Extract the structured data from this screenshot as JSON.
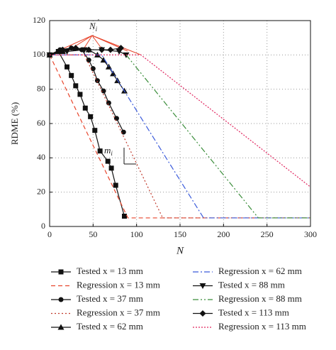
{
  "chart_data": {
    "type": "line",
    "xlabel": "N",
    "ylabel": "RDME (%)",
    "xlim": [
      0,
      300
    ],
    "ylim": [
      0,
      120
    ],
    "xticks": [
      0,
      50,
      100,
      150,
      200,
      250,
      300
    ],
    "yticks": [
      0,
      20,
      40,
      60,
      80,
      100,
      120
    ],
    "grid": true,
    "annotations": [
      {
        "base": "N",
        "sub": "i",
        "sup": "′"
      },
      {
        "base": "m",
        "sub": "i"
      }
    ],
    "series": [
      {
        "name": "Tested x = 13 mm",
        "color": "#111111",
        "marker": "square",
        "dash": null,
        "x": [
          0,
          10,
          20,
          25,
          30,
          35,
          41,
          47,
          52,
          58,
          67,
          71,
          76,
          86
        ],
        "values": [
          100,
          102,
          93,
          88,
          82,
          77,
          69,
          64,
          56,
          44,
          38,
          34,
          24,
          6
        ]
      },
      {
        "name": "Regression x = 13 mm",
        "color": "#e8452c",
        "marker": null,
        "dash": "6,4",
        "x": [
          0,
          90,
          300
        ],
        "values": [
          100,
          5,
          5
        ]
      },
      {
        "name": "Tested x = 37 mm",
        "color": "#111111",
        "marker": "circle",
        "dash": null,
        "x": [
          0,
          12,
          25,
          37,
          45,
          50,
          55,
          62,
          68,
          77,
          85
        ],
        "values": [
          100,
          103,
          104,
          103,
          97,
          92,
          85,
          79,
          72,
          63,
          55
        ]
      },
      {
        "name": "Regression x = 37 mm",
        "color": "#c0392b",
        "marker": null,
        "dash": "2,3",
        "x": [
          0,
          40,
          130,
          300
        ],
        "values": [
          100,
          100,
          5,
          5
        ]
      },
      {
        "name": "Tested x = 62 mm",
        "color": "#111111",
        "marker": "triangle",
        "dash": null,
        "x": [
          0,
          15,
          30,
          45,
          55,
          62,
          68,
          73,
          78,
          86
        ],
        "values": [
          100,
          102,
          104,
          103,
          100,
          97,
          93,
          89,
          85,
          79
        ]
      },
      {
        "name": "Regression x = 62 mm",
        "color": "#3b5bdb",
        "marker": null,
        "dash": "8,3,2,3",
        "x": [
          0,
          60,
          177,
          300
        ],
        "values": [
          100,
          100,
          5,
          5
        ]
      },
      {
        "name": "Tested x = 88 mm",
        "color": "#111111",
        "marker": "triangle-down",
        "dash": null,
        "x": [
          0,
          20,
          40,
          60,
          80,
          88
        ],
        "values": [
          100,
          102,
          103,
          103,
          102,
          100
        ]
      },
      {
        "name": "Regression x = 88 mm",
        "color": "#3a8d3a",
        "marker": null,
        "dash": "8,3,2,3,2,3",
        "x": [
          88,
          240,
          300
        ],
        "values": [
          100,
          5,
          5
        ]
      },
      {
        "name": "Tested x = 113 mm",
        "color": "#111111",
        "marker": "diamond",
        "dash": null,
        "x": [
          0,
          15,
          30,
          45,
          60,
          70,
          82
        ],
        "values": [
          100,
          103,
          104,
          103,
          103,
          103,
          104
        ]
      },
      {
        "name": "Regression x = 113 mm",
        "color": "#e0245e",
        "marker": null,
        "dash": "2,2",
        "x": [
          0,
          105,
          300
        ],
        "values": [
          100,
          100,
          23
        ]
      }
    ]
  }
}
